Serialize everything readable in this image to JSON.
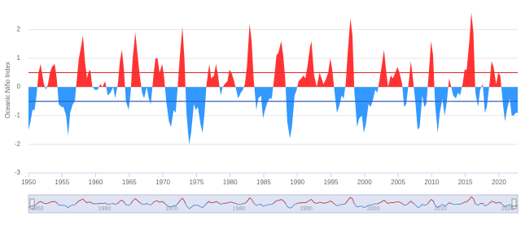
{
  "chart_data": {
    "type": "area",
    "y_axis_label": "Oceanic Niño Index",
    "positive_color": "#ff3333",
    "negative_color": "#3399ff",
    "thresholds": [
      {
        "value": 0.5,
        "color": "#e03030"
      },
      {
        "value": -0.5,
        "color": "#3060c0"
      }
    ],
    "xlim": [
      1950,
      2022.8
    ],
    "xticks": [
      1950,
      1955,
      1960,
      1965,
      1970,
      1975,
      1980,
      1985,
      1990,
      1995,
      2000,
      2005,
      2010,
      2015,
      2020
    ],
    "ylim": [
      -3,
      2.75
    ],
    "yticks": [
      -3,
      -2,
      -1,
      0,
      1,
      2
    ],
    "grid": true,
    "navigator": true,
    "x": [
      1950.0,
      1950.3,
      1950.6,
      1950.9,
      1951.2,
      1951.5,
      1951.8,
      1952.0,
      1952.3,
      1952.6,
      1952.9,
      1953.2,
      1953.5,
      1953.9,
      1954.2,
      1954.5,
      1954.9,
      1955.2,
      1955.6,
      1955.9,
      1956.2,
      1956.6,
      1956.9,
      1957.2,
      1957.5,
      1957.9,
      1958.1,
      1958.4,
      1958.7,
      1958.9,
      1959.2,
      1959.5,
      1959.9,
      1960.3,
      1960.7,
      1961.0,
      1961.4,
      1961.8,
      1962.2,
      1962.6,
      1962.9,
      1963.3,
      1963.6,
      1963.9,
      1964.2,
      1964.5,
      1964.9,
      1965.2,
      1965.5,
      1965.9,
      1966.2,
      1966.5,
      1966.9,
      1967.2,
      1967.6,
      1967.9,
      1968.2,
      1968.6,
      1968.9,
      1969.2,
      1969.5,
      1969.9,
      1970.2,
      1970.5,
      1970.9,
      1971.2,
      1971.6,
      1971.9,
      1972.2,
      1972.5,
      1972.9,
      1973.2,
      1973.5,
      1973.9,
      1974.2,
      1974.6,
      1974.9,
      1975.2,
      1975.6,
      1975.9,
      1976.2,
      1976.5,
      1976.9,
      1977.2,
      1977.6,
      1977.9,
      1978.2,
      1978.6,
      1978.9,
      1979.2,
      1979.6,
      1979.9,
      1980.2,
      1980.6,
      1980.9,
      1981.2,
      1981.6,
      1981.9,
      1982.2,
      1982.5,
      1982.9,
      1983.2,
      1983.5,
      1983.9,
      1984.2,
      1984.6,
      1984.9,
      1985.2,
      1985.6,
      1985.9,
      1986.2,
      1986.6,
      1986.9,
      1987.2,
      1987.6,
      1987.9,
      1988.2,
      1988.5,
      1988.9,
      1989.2,
      1989.6,
      1989.9,
      1990.2,
      1990.6,
      1990.9,
      1991.2,
      1991.5,
      1991.9,
      1992.1,
      1992.5,
      1992.9,
      1993.3,
      1993.6,
      1993.9,
      1994.3,
      1994.6,
      1994.9,
      1995.2,
      1995.6,
      1995.9,
      1996.2,
      1996.6,
      1996.9,
      1997.2,
      1997.5,
      1997.9,
      1998.2,
      1998.5,
      1998.9,
      1999.2,
      1999.6,
      1999.9,
      2000.2,
      2000.6,
      2000.9,
      2001.2,
      2001.6,
      2001.9,
      2002.2,
      2002.6,
      2002.9,
      2003.2,
      2003.5,
      2003.9,
      2004.2,
      2004.6,
      2004.9,
      2005.2,
      2005.6,
      2005.9,
      2006.2,
      2006.6,
      2006.9,
      2007.2,
      2007.6,
      2007.9,
      2008.2,
      2008.6,
      2008.9,
      2009.2,
      2009.6,
      2009.9,
      2010.2,
      2010.5,
      2010.9,
      2011.2,
      2011.6,
      2011.9,
      2012.2,
      2012.6,
      2012.9,
      2013.2,
      2013.6,
      2013.9,
      2014.2,
      2014.6,
      2014.9,
      2015.2,
      2015.6,
      2015.9,
      2016.2,
      2016.5,
      2016.9,
      2017.2,
      2017.6,
      2017.9,
      2018.2,
      2018.6,
      2018.9,
      2019.2,
      2019.6,
      2019.9,
      2020.2,
      2020.6,
      2020.9,
      2021.2,
      2021.6,
      2021.9,
      2022.2,
      2022.5,
      2022.8
    ],
    "values": [
      -1.5,
      -1.2,
      -0.8,
      -0.8,
      -0.3,
      0.5,
      0.8,
      0.5,
      0.1,
      -0.1,
      0.1,
      0.5,
      0.7,
      0.8,
      0.3,
      -0.6,
      -0.7,
      -0.7,
      -1.0,
      -1.7,
      -0.9,
      -0.6,
      -0.5,
      0.3,
      1.0,
      1.5,
      1.8,
      0.9,
      0.3,
      0.5,
      0.6,
      0.0,
      -0.1,
      -0.1,
      0.1,
      0.0,
      0.2,
      -0.3,
      -0.2,
      0.0,
      -0.4,
      0.1,
      0.9,
      1.3,
      0.6,
      -0.5,
      -0.8,
      -0.2,
      1.0,
      1.9,
      1.2,
      0.5,
      -0.2,
      -0.4,
      0.0,
      -0.4,
      -0.6,
      0.4,
      1.0,
      1.0,
      0.5,
      0.8,
      0.3,
      -0.5,
      -1.2,
      -1.4,
      -0.8,
      -0.9,
      0.0,
      1.0,
      2.1,
      1.0,
      -0.9,
      -2.0,
      -1.6,
      -0.6,
      -0.8,
      -0.7,
      -1.3,
      -1.6,
      -0.9,
      0.1,
      0.8,
      0.3,
      0.4,
      0.8,
      0.4,
      -0.3,
      0.0,
      0.1,
      0.2,
      0.6,
      0.5,
      0.2,
      -0.1,
      -0.4,
      -0.2,
      -0.1,
      0.1,
      0.7,
      2.2,
      1.6,
      0.3,
      -0.8,
      -0.4,
      -0.3,
      -1.1,
      -0.8,
      -0.5,
      -0.4,
      -0.4,
      0.4,
      1.1,
      1.2,
      1.6,
      1.1,
      0.3,
      -1.2,
      -1.8,
      -1.4,
      -0.3,
      -0.1,
      0.2,
      0.3,
      0.4,
      0.3,
      0.7,
      1.4,
      1.6,
      0.4,
      0.0,
      0.5,
      0.3,
      0.1,
      0.3,
      0.5,
      1.0,
      0.6,
      -0.3,
      -0.9,
      -0.7,
      -0.3,
      -0.4,
      0.1,
      1.2,
      2.4,
      1.8,
      -0.2,
      -1.4,
      -1.1,
      -1.0,
      -1.6,
      -1.3,
      -0.6,
      -0.7,
      -0.5,
      -0.1,
      -0.2,
      0.2,
      0.8,
      1.3,
      0.6,
      0.0,
      0.4,
      0.3,
      0.5,
      0.7,
      0.5,
      0.1,
      -0.7,
      -0.6,
      0.2,
      0.9,
      0.3,
      -0.6,
      -1.5,
      -1.4,
      -0.3,
      -0.7,
      -0.6,
      0.6,
      1.6,
      1.1,
      -0.6,
      -1.6,
      -0.9,
      -0.4,
      -1.0,
      -0.6,
      0.3,
      0.0,
      -0.3,
      -0.4,
      -0.2,
      -0.3,
      0.1,
      0.6,
      0.6,
      1.6,
      2.6,
      1.9,
      -0.2,
      -0.7,
      -0.1,
      0.1,
      -0.9,
      -0.7,
      0.1,
      0.9,
      0.7,
      0.1,
      0.5,
      0.4,
      -0.6,
      -1.2,
      -0.8,
      -0.4,
      -1.0,
      -1.0,
      -0.9,
      -0.9
    ]
  }
}
